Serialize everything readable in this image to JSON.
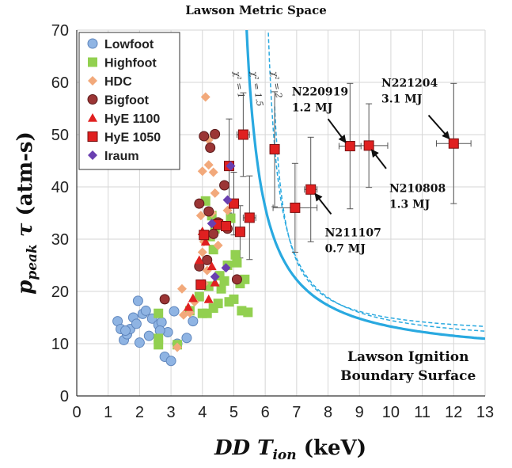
{
  "chart_data": {
    "type": "scatter",
    "title": "Lawson Metric Space",
    "xlabel": {
      "main": "DD T",
      "sub": "ion",
      "unit": " (keV)"
    },
    "ylabel": {
      "main": "p",
      "sub": "peak",
      "tau": "τ",
      "unit": " (atm-s)"
    },
    "xlim": [
      0,
      13
    ],
    "ylim": [
      0,
      70
    ],
    "x_ticks": [
      "0",
      "1",
      "2",
      "3",
      "4",
      "5",
      "6",
      "7",
      "8",
      "9",
      "10",
      "11",
      "12",
      "13"
    ],
    "y_ticks": [
      "0",
      "10",
      "20",
      "30",
      "40",
      "50",
      "60",
      "70"
    ],
    "grid": true,
    "legend_position": "top-left",
    "colors": {
      "lowfoot": "#8fb4e3",
      "highfoot": "#92d050",
      "hdc": "#f2a97b",
      "bigfoot": "#9b3535",
      "hye1100": "#e02020",
      "hye1050": "#e02020",
      "iraum": "#6a3fb0",
      "boundary": "#29a9e0"
    },
    "series": [
      {
        "name": "Lowfoot",
        "key": "lowfoot",
        "marker": "circle",
        "points": [
          [
            1.3,
            14.3
          ],
          [
            1.4,
            12.8
          ],
          [
            1.5,
            10.7
          ],
          [
            1.6,
            11.8
          ],
          [
            1.7,
            12.8
          ],
          [
            1.8,
            15.0
          ],
          [
            1.9,
            13.8
          ],
          [
            1.95,
            18.2
          ],
          [
            2.0,
            10.2
          ],
          [
            2.1,
            15.7
          ],
          [
            2.2,
            16.3
          ],
          [
            2.3,
            11.5
          ],
          [
            2.4,
            14.8
          ],
          [
            2.6,
            13.6
          ],
          [
            2.7,
            14.1
          ],
          [
            2.8,
            7.5
          ],
          [
            2.9,
            12.2
          ],
          [
            3.0,
            6.7
          ],
          [
            3.1,
            16.2
          ],
          [
            3.2,
            10.0
          ],
          [
            3.5,
            11.1
          ],
          [
            3.7,
            14.3
          ],
          [
            2.65,
            12.5
          ],
          [
            1.55,
            12.5
          ]
        ]
      },
      {
        "name": "Highfoot",
        "key": "highfoot",
        "marker": "square",
        "points": [
          [
            2.6,
            11.0
          ],
          [
            2.6,
            15.8
          ],
          [
            2.6,
            9.8
          ],
          [
            3.2,
            9.8
          ],
          [
            3.6,
            16.3
          ],
          [
            3.9,
            19.0
          ],
          [
            4.0,
            15.8
          ],
          [
            4.15,
            15.8
          ],
          [
            4.2,
            21.0
          ],
          [
            4.35,
            16.8
          ],
          [
            4.5,
            17.7
          ],
          [
            4.55,
            23.0
          ],
          [
            4.6,
            20.5
          ],
          [
            4.7,
            22.0
          ],
          [
            4.8,
            25.0
          ],
          [
            4.85,
            18.0
          ],
          [
            4.9,
            34.0
          ],
          [
            5.0,
            18.5
          ],
          [
            5.05,
            27.0
          ],
          [
            5.1,
            25.5
          ],
          [
            5.2,
            21.5
          ],
          [
            5.25,
            16.3
          ],
          [
            5.35,
            22.3
          ],
          [
            5.45,
            16.0
          ],
          [
            4.35,
            28.0
          ],
          [
            4.25,
            30.5
          ],
          [
            4.4,
            32.0
          ],
          [
            4.3,
            34.5
          ],
          [
            4.1,
            37.3
          ]
        ]
      },
      {
        "name": "HDC",
        "key": "hdc",
        "marker": "diamond",
        "points": [
          [
            3.2,
            9.3
          ],
          [
            3.35,
            20.5
          ],
          [
            3.4,
            15.5
          ],
          [
            3.6,
            15.9
          ],
          [
            3.75,
            18.0
          ],
          [
            4.0,
            43.0
          ],
          [
            4.1,
            57.2
          ],
          [
            4.2,
            44.2
          ],
          [
            4.35,
            42.8
          ],
          [
            4.4,
            38.8
          ],
          [
            4.3,
            35.0
          ],
          [
            3.95,
            34.5
          ],
          [
            4.05,
            29.5
          ],
          [
            4.0,
            27.5
          ],
          [
            4.15,
            24.0
          ],
          [
            4.05,
            21.5
          ],
          [
            4.3,
            30.8
          ],
          [
            4.5,
            28.8
          ],
          [
            4.8,
            35.5
          ],
          [
            4.2,
            49.0
          ]
        ]
      },
      {
        "name": "Bigfoot",
        "key": "bigfoot",
        "marker": "circle",
        "points": [
          [
            2.8,
            18.5
          ],
          [
            3.9,
            36.8
          ],
          [
            4.05,
            49.7
          ],
          [
            4.15,
            26.0
          ],
          [
            4.2,
            35.3
          ],
          [
            4.25,
            47.5
          ],
          [
            4.35,
            31.0
          ],
          [
            4.4,
            50.1
          ],
          [
            4.5,
            33.2
          ],
          [
            4.7,
            40.3
          ],
          [
            4.8,
            32.0
          ],
          [
            5.1,
            22.3
          ],
          [
            3.9,
            24.8
          ]
        ]
      },
      {
        "name": "HyE 1100",
        "key": "hye1100",
        "marker": "triangle",
        "points": [
          [
            3.55,
            17.0
          ],
          [
            3.7,
            18.7
          ],
          [
            3.9,
            26.0
          ],
          [
            4.0,
            31.5
          ],
          [
            4.1,
            29.5
          ],
          [
            4.2,
            18.5
          ],
          [
            4.3,
            24.8
          ],
          [
            4.4,
            21.7
          ]
        ]
      },
      {
        "name": "HyE 1050",
        "key": "hye1050",
        "marker": "square",
        "stroke": "#7a1010",
        "points": [
          [
            3.95,
            21.3
          ],
          [
            4.05,
            30.8
          ],
          [
            4.5,
            32.8
          ],
          [
            4.75,
            32.5
          ],
          [
            4.85,
            44.0
          ],
          [
            5.0,
            36.8
          ],
          [
            5.2,
            31.4
          ],
          [
            5.3,
            50.0
          ],
          [
            5.5,
            34.1
          ],
          [
            6.3,
            47.2
          ],
          [
            6.95,
            36.0
          ],
          [
            7.45,
            39.5
          ],
          [
            8.7,
            47.8
          ],
          [
            9.3,
            47.9
          ],
          [
            12.0,
            48.3
          ]
        ]
      },
      {
        "name": "Iraum",
        "key": "iraum",
        "marker": "diamond",
        "points": [
          [
            4.3,
            33.0
          ],
          [
            4.8,
            37.5
          ],
          [
            4.9,
            44.0
          ],
          [
            4.75,
            24.5
          ],
          [
            4.4,
            22.8
          ]
        ]
      }
    ],
    "error_bars": [
      {
        "x": 4.85,
        "y": 44.0,
        "x_err": 0.15,
        "y_err": [
          9,
          9
        ]
      },
      {
        "x": 5.0,
        "y": 36.8,
        "x_err": 0.15,
        "y_err": [
          6,
          6
        ]
      },
      {
        "x": 5.3,
        "y": 50.0,
        "x_err": 0.2,
        "y_err": [
          8,
          8
        ]
      },
      {
        "x": 5.5,
        "y": 34.1,
        "x_err": 0.2,
        "y_err": [
          8,
          8
        ]
      },
      {
        "x": 5.2,
        "y": 31.4,
        "x_err": 0.15,
        "y_err": [
          5,
          5
        ]
      },
      {
        "x": 6.3,
        "y": 47.2,
        "x_err": 0.15,
        "y_err": [
          11,
          11
        ]
      },
      {
        "x": 6.95,
        "y": 36.0,
        "x_err": 0.7,
        "y_err": [
          8.5,
          8.5
        ]
      },
      {
        "x": 7.45,
        "y": 39.5,
        "x_err": 0.2,
        "y_err": [
          10,
          10
        ]
      },
      {
        "x": 8.7,
        "y": 47.8,
        "x_err": 0.35,
        "y_err": [
          12,
          12
        ]
      },
      {
        "x": 9.3,
        "y": 47.9,
        "x_err": 0.6,
        "y_err": [
          8,
          8
        ]
      },
      {
        "x": 12.0,
        "y": 48.3,
        "x_err": 0.55,
        "y_err": [
          11.5,
          11.5
        ]
      }
    ],
    "boundary_curves": [
      {
        "label": "χ² = 1",
        "style": "solid",
        "x_start": 5.3,
        "k": 0.71
      },
      {
        "label": "χ² = 1.5",
        "style": "dashed",
        "x_start": 6.1,
        "k": 0.53
      },
      {
        "label": "χ² = 2",
        "style": "dashed",
        "x_start": 6.3,
        "k": 0.47
      }
    ],
    "annotations": [
      {
        "shot": "N220919",
        "energy": "1.2 MJ",
        "text_x": 6.85,
        "text_y": 57.5,
        "arrow_from": [
          8.0,
          53.0
        ],
        "arrow_to": [
          8.55,
          48.6
        ]
      },
      {
        "shot": "N221204",
        "energy": "3.1 MJ",
        "text_x": 9.7,
        "text_y": 59.2,
        "arrow_from": [
          11.2,
          53.7
        ],
        "arrow_to": [
          11.85,
          49.3
        ]
      },
      {
        "shot": "N210808",
        "energy": "1.3 MJ",
        "text_x": 9.95,
        "text_y": 39.0,
        "arrow_from": [
          9.85,
          43.5
        ],
        "arrow_to": [
          9.4,
          47.0
        ]
      },
      {
        "shot": "N211107",
        "energy": "0.7 MJ",
        "text_x": 7.9,
        "text_y": 30.5,
        "arrow_from": [
          8.1,
          34.8
        ],
        "arrow_to": [
          7.6,
          38.6
        ]
      }
    ],
    "boundary_label": [
      "Lawson Ignition",
      "Boundary Surface"
    ]
  }
}
